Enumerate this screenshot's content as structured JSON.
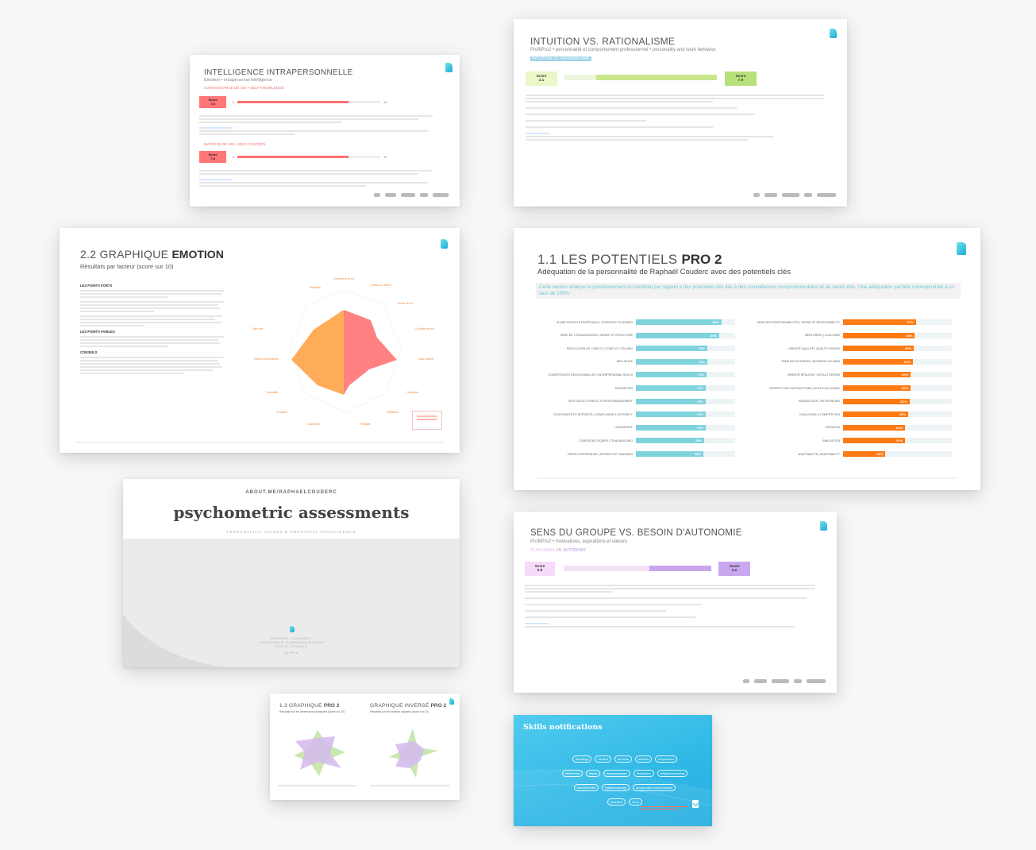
{
  "slides": {
    "intrapersonal": {
      "title": "INTELLIGENCE INTRAPERSONNELLE",
      "subtitle": "Émotion • intrapersonal intelligence",
      "section1": "CONNAISSANCE DE SOI • SELF-KNOWLEDGE",
      "score1_label": "Score",
      "score1_value": "7.8",
      "section2": "MAÎTRISE DE SOI • SELF-CONTROL",
      "score2_label": "Score",
      "score2_value": "7.8",
      "scale_min": "0",
      "scale_max": "10",
      "score1_fraction": 0.78,
      "score2_fraction": 0.78
    },
    "intuition": {
      "title": "INTUITION VS. RATIONALISME",
      "subtitle": "ProfilPro2 • personnalité et comportement professionnel • personality and work behavior",
      "tag": "INTUITION VS. RATIONALISME",
      "score_left_label": "Score",
      "score_left_value": "2.1",
      "score_right_label": "Score",
      "score_right_value": "7.9",
      "right_fraction": 0.79
    },
    "emotion": {
      "title_light": "2.2 GRAPHIQUE ",
      "title_bold": "EMOTION",
      "subtitle": "Résultats par facteur (score sur 10)",
      "strengths_heading": "LES POINTS FORTS",
      "weaknesses_heading": "LES POINTS FAIBLES",
      "advice_heading": "CONSEILS"
    },
    "potentials": {
      "title_light": "1.1 LES POTENTIELS ",
      "title_bold": "PRO 2",
      "subtitle": "Adéquation de la personnalité de Raphaël Couderc avec des potentiels clés",
      "intro": "Cette section analyse le positionnement du candidat par rapport à des potentiels clés liés à des compétences comportementales et au savoir-être. Une adéquation parfaite correspondrait à un taux de 100%.",
      "left_color": "#7fd3dd",
      "right_color": "#ff7a12",
      "left": [
        {
          "label": "PLANIFICATION STRATÉGIQUE | STRATEGIC PLANNING",
          "value": 86,
          "text": "86%"
        },
        {
          "label": "SENS DE L'ORGANISATION | SENSE OF STRUCTURE",
          "value": 84,
          "text": "84%"
        },
        {
          "label": "RÉSOLUTION DE CONFLIT | CONFLICT SOLVING",
          "value": 72,
          "text": "72%"
        },
        {
          "label": "INFLUENCE",
          "value": 72,
          "text": "72%"
        },
        {
          "label": "COMPÉTENCES RELATIONNELLES | INTERPERSONAL SKILLS",
          "value": 71,
          "text": "71%"
        },
        {
          "label": "DISCRÉTION",
          "value": 70,
          "text": "70%"
        },
        {
          "label": "GESTION DU STRESS | STRESS MANAGEMENT",
          "value": 70,
          "text": "70%"
        },
        {
          "label": "CONFORMITÉ ET INTÉGRITÉ | COMPLIANCE & INTEGRITY",
          "value": 70,
          "text": "70%"
        },
        {
          "label": "LEADERSHIP",
          "value": 70,
          "text": "70%"
        },
        {
          "label": "COHÉSION D'ÉQUIPE | TEAM BUILDING",
          "value": 69,
          "text": "69%"
        },
        {
          "label": "DÉSIR D'APPRENDRE | DESIRE FOR LEARNING",
          "value": 68,
          "text": "68%"
        }
      ],
      "right": [
        {
          "label": "SENS DES RESPONSABILITÉS | SENSE OF RESPONSIBILITY",
          "value": 67,
          "text": "67%"
        },
        {
          "label": "MENTORING | COACHING",
          "value": 66,
          "text": "66%"
        },
        {
          "label": "ORIENTÉ QUALITÉ | QUALITY DRIVEN",
          "value": 65,
          "text": "65%"
        },
        {
          "label": "SENS DES AFFAIRES | BUSINESS ACUMEN",
          "value": 64,
          "text": "64%"
        },
        {
          "label": "ORIENTÉ RÉSULTAT | RESULT DRIVEN",
          "value": 62,
          "text": "62%"
        },
        {
          "label": "RESPECT DES INSTRUCTIONS | RULE-FOLLOWING",
          "value": 62,
          "text": "62%"
        },
        {
          "label": "RÉSEAUTAGE | NETWORKING",
          "value": 61,
          "text": "61%"
        },
        {
          "label": "CHALLENGE & COMPÉTITION",
          "value": 60,
          "text": "60%"
        },
        {
          "label": "INITIATIVE",
          "value": 57,
          "text": "57%"
        },
        {
          "label": "INNOVATION",
          "value": 57,
          "text": "57%"
        },
        {
          "label": "ADAPTABILITÉ | ADAPTABILITY",
          "value": 39,
          "text": "39%"
        }
      ]
    },
    "cover": {
      "url": "ABOUT.ME/RAPHAELCOUDERC",
      "title": "psychometric assessments",
      "tagline": "PERSONALITY, VALUES & EMOTIONAL INTELLIGENCE",
      "name": "RAPHAËL COUDERC",
      "role": "CORPORATE COMMUNICATIONS",
      "city": "PARIS, FRANCE",
      "hashtag": "#25976"
    },
    "autonomy": {
      "title": "SENS DU GROUPE VS. BESOIN D'AUTONOMIE",
      "subtitle": "ProfilPro2 • motivations, aspirations et valeurs",
      "tag_left": "TEAM WORK",
      "tag_mid": " VS. ",
      "tag_right": "AUTONOMY",
      "score_left_label": "Score",
      "score_left_value": "5.8",
      "score_right_label": "Score",
      "score_right_value": "4.2",
      "right_fraction": 0.42
    },
    "pro2_charts": {
      "left_title_light": "1.3 GRAPHIQUE ",
      "left_title_bold": "PRO 2",
      "left_subtitle": "Résultats sur les dimensions principales (score sur 10)",
      "right_title_light": "GRAPHIQUE INVERSÉ ",
      "right_title_bold": "PRO 2",
      "right_subtitle": "Résultats sur les facteurs opposés (score sur 10)"
    },
    "skills": {
      "title": "Skills notifications",
      "chips_row1": [
        "#strategy",
        "#brand",
        "#events",
        "#media",
        "#reputation"
      ],
      "chips_row2": [
        "#influence",
        "#data",
        "#addressables",
        "#analytics",
        "#digitalmarketing"
      ],
      "chips_row3": [
        "#socialmedia",
        "#graphicdesign",
        "#corporatecommunication"
      ],
      "chips_row4": [
        "#content",
        "#crm"
      ]
    }
  }
}
